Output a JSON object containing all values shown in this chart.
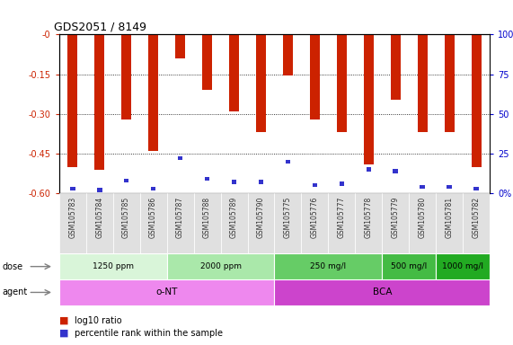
{
  "title": "GDS2051 / 8149",
  "samples": [
    "GSM105783",
    "GSM105784",
    "GSM105785",
    "GSM105786",
    "GSM105787",
    "GSM105788",
    "GSM105789",
    "GSM105790",
    "GSM105775",
    "GSM105776",
    "GSM105777",
    "GSM105778",
    "GSM105779",
    "GSM105780",
    "GSM105781",
    "GSM105782"
  ],
  "log10_ratio": [
    -0.5,
    -0.51,
    -0.32,
    -0.44,
    -0.09,
    -0.21,
    -0.29,
    -0.37,
    -0.155,
    -0.32,
    -0.37,
    -0.49,
    -0.245,
    -0.37,
    -0.37,
    -0.5
  ],
  "percentile_rank": [
    3,
    2,
    8,
    3,
    22,
    9,
    7,
    7,
    20,
    5,
    6,
    15,
    14,
    4,
    4,
    3
  ],
  "ylim": [
    -0.6,
    0.0
  ],
  "yticks": [
    0.0,
    -0.15,
    -0.3,
    -0.45,
    -0.6
  ],
  "ytick_labels": [
    "-0",
    "-0.15",
    "-0.30",
    "-0.45",
    "-0.60"
  ],
  "y2ticks": [
    0,
    25,
    50,
    75,
    100
  ],
  "y2tick_labels": [
    "0%",
    "25",
    "50",
    "75",
    "100%"
  ],
  "bar_color": "#cc2200",
  "blue_color": "#3333cc",
  "bg_color": "#ffffff",
  "plot_bg": "#ffffff",
  "dose_groups": [
    {
      "label": "1250 ppm",
      "start": 0,
      "end": 4,
      "color": "#d9f5d9"
    },
    {
      "label": "2000 ppm",
      "start": 4,
      "end": 8,
      "color": "#aae8aa"
    },
    {
      "label": "250 mg/l",
      "start": 8,
      "end": 12,
      "color": "#66cc66"
    },
    {
      "label": "500 mg/l",
      "start": 12,
      "end": 14,
      "color": "#44bb44"
    },
    {
      "label": "1000 mg/l",
      "start": 14,
      "end": 16,
      "color": "#22aa22"
    }
  ],
  "agent_groups": [
    {
      "label": "o-NT",
      "start": 0,
      "end": 8,
      "color": "#ee88ee"
    },
    {
      "label": "BCA",
      "start": 8,
      "end": 16,
      "color": "#cc44cc"
    }
  ],
  "ylabel_left_color": "#cc2200",
  "ylabel_right_color": "#0000cc",
  "title_color": "#000000",
  "legend_items": [
    {
      "label": "log10 ratio",
      "color": "#cc2200"
    },
    {
      "label": "percentile rank within the sample",
      "color": "#3333cc"
    }
  ]
}
